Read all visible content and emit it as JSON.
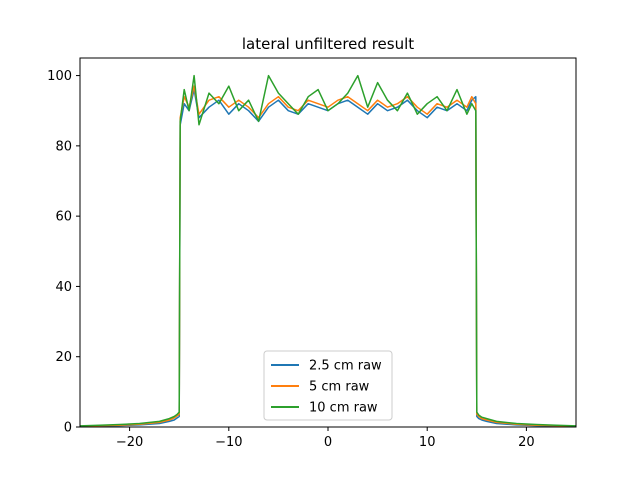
{
  "chart_data": {
    "type": "line",
    "title": "lateral unfiltered result",
    "xlabel": "",
    "ylabel": "",
    "xlim": [
      -25,
      25
    ],
    "ylim": [
      0,
      105
    ],
    "grid": false,
    "legend_position": "lower center",
    "xticks": [
      -20,
      -10,
      0,
      10,
      20
    ],
    "yticks": [
      0,
      20,
      40,
      60,
      80,
      100
    ],
    "xtick_labels": [
      "−20",
      "−10",
      "0",
      "10",
      "20"
    ],
    "ytick_labels": [
      "0",
      "20",
      "40",
      "60",
      "80",
      "100"
    ],
    "series": [
      {
        "name": "2.5 cm raw",
        "color": "#1f77b4",
        "x": [
          -25,
          -23,
          -21,
          -19,
          -17,
          -16,
          -15.5,
          -15.2,
          -15.0,
          -14.9,
          -14.5,
          -14,
          -13.5,
          -13,
          -12,
          -11,
          -10,
          -9,
          -8,
          -7,
          -6,
          -5,
          -4,
          -3,
          -2,
          -1,
          0,
          1,
          2,
          3,
          4,
          5,
          6,
          7,
          8,
          9,
          10,
          11,
          12,
          13,
          14,
          14.5,
          14.9,
          15.0,
          15.2,
          15.5,
          16,
          17,
          19,
          21,
          23,
          25
        ],
        "y": [
          0.2,
          0.3,
          0.4,
          0.6,
          1.0,
          1.6,
          2.0,
          2.6,
          3.0,
          86,
          92,
          90,
          96,
          88,
          91,
          93,
          89,
          92,
          90,
          87,
          91,
          93,
          90,
          89,
          92,
          91,
          90,
          92,
          93,
          91,
          89,
          92,
          90,
          91,
          93,
          90,
          88,
          91,
          90,
          92,
          90,
          93,
          94,
          3.0,
          2.4,
          2.0,
          1.6,
          1.0,
          0.6,
          0.4,
          0.3,
          0.2
        ]
      },
      {
        "name": "5 cm raw",
        "color": "#ff7f0e",
        "x": [
          -25,
          -23,
          -21,
          -19,
          -17,
          -16,
          -15.5,
          -15.2,
          -15.0,
          -14.9,
          -14.5,
          -14,
          -13.5,
          -13,
          -12,
          -11,
          -10,
          -9,
          -8,
          -7,
          -6,
          -5,
          -4,
          -3,
          -2,
          -1,
          0,
          1,
          2,
          3,
          4,
          5,
          6,
          7,
          8,
          9,
          10,
          11,
          12,
          13,
          14,
          14.5,
          14.9,
          15.0,
          15.2,
          15.5,
          16,
          17,
          19,
          21,
          23,
          25
        ],
        "y": [
          0.2,
          0.4,
          0.5,
          0.8,
          1.3,
          2.0,
          2.6,
          3.2,
          3.6,
          88,
          94,
          91,
          97,
          89,
          93,
          94,
          91,
          93,
          91,
          88,
          92,
          94,
          91,
          90,
          93,
          92,
          91,
          93,
          94,
          92,
          90,
          93,
          91,
          92,
          94,
          91,
          89,
          92,
          91,
          93,
          91,
          94,
          92,
          3.6,
          3.0,
          2.4,
          2.0,
          1.3,
          0.8,
          0.5,
          0.4,
          0.2
        ]
      },
      {
        "name": "10 cm raw",
        "color": "#2ca02c",
        "x": [
          -25,
          -23,
          -21,
          -19,
          -17,
          -16,
          -15.5,
          -15.2,
          -15.0,
          -14.9,
          -14.5,
          -14,
          -13.5,
          -13,
          -12,
          -11,
          -10,
          -9,
          -8,
          -7,
          -6,
          -5,
          -4,
          -3,
          -2,
          -1,
          0,
          1,
          2,
          3,
          4,
          5,
          6,
          7,
          8,
          9,
          10,
          11,
          12,
          13,
          14,
          14.5,
          14.9,
          15.0,
          15.2,
          15.5,
          16,
          17,
          19,
          21,
          23,
          25
        ],
        "y": [
          0.3,
          0.5,
          0.7,
          1.0,
          1.6,
          2.4,
          3.0,
          3.6,
          4.2,
          87,
          96,
          90,
          100,
          86,
          95,
          92,
          97,
          90,
          93,
          87,
          100,
          95,
          92,
          89,
          94,
          96,
          90,
          92,
          95,
          100,
          91,
          98,
          93,
          90,
          95,
          89,
          92,
          94,
          90,
          96,
          89,
          92,
          90,
          4.2,
          3.4,
          2.8,
          2.4,
          1.6,
          1.0,
          0.7,
          0.5,
          0.3
        ]
      }
    ]
  }
}
